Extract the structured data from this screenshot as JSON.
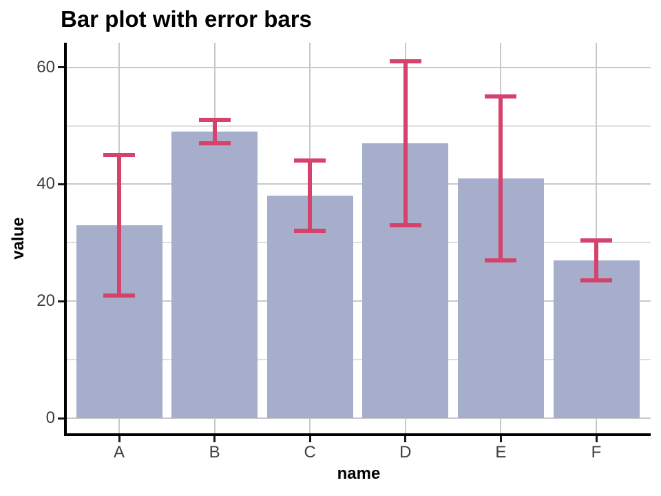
{
  "title": "Bar plot with error bars",
  "colors": {
    "bar_fill": "#a6aecb",
    "error_bar": "#d5436c",
    "axis_line": "#000000",
    "tick_mark": "#1a1a1a",
    "tick_label": "#3d3d3d",
    "grid_major": "#c8c8c8",
    "grid_minor": "#dedede",
    "background": "#ffffff"
  },
  "chart_data": {
    "type": "bar",
    "title": "Bar plot with error bars",
    "xlabel": "name",
    "ylabel": "value",
    "categories": [
      "A",
      "B",
      "C",
      "D",
      "E",
      "F"
    ],
    "values": [
      33,
      49,
      38,
      47,
      41,
      27
    ],
    "error_bars": {
      "ymin": [
        21,
        47,
        32,
        33,
        27,
        23.6
      ],
      "ymax": [
        45,
        51,
        44,
        61,
        55,
        30.4
      ]
    },
    "ylim": [
      0,
      64
    ],
    "yticks": [
      0,
      20,
      40,
      60
    ],
    "yticks_minor": [
      10,
      30,
      50
    ],
    "grid": "on",
    "legend": "none"
  }
}
